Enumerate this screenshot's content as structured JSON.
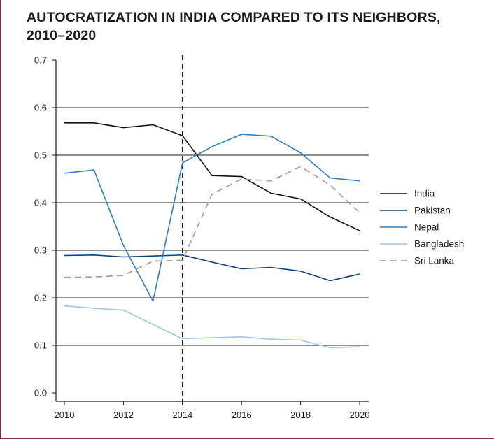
{
  "title_lines": [
    "AUTOCRATIZATION IN INDIA COMPARED TO ITS NEIGHBORS,",
    "2010–2020"
  ],
  "chart_data": {
    "type": "line",
    "title": "AUTOCRATIZATION IN INDIA COMPARED TO ITS NEIGHBORS, 2010–2020",
    "xlabel": "",
    "ylabel": "",
    "xlim": [
      2010,
      2020
    ],
    "ylim": [
      0.0,
      0.7
    ],
    "x_ticks": [
      2010,
      2012,
      2014,
      2016,
      2018,
      2020
    ],
    "y_ticks": [
      "0.0",
      "0.1",
      "0.2",
      "0.3",
      "0.4",
      "0.5",
      "0.6",
      "0.7"
    ],
    "grid": "horizontal",
    "reference_line": {
      "x": 2014,
      "style": "dashed"
    },
    "legend_position": "right",
    "x": [
      2010,
      2011,
      2012,
      2013,
      2014,
      2015,
      2016,
      2017,
      2018,
      2019,
      2020
    ],
    "series": [
      {
        "name": "India",
        "color": "#111111",
        "dash": false,
        "values": [
          0.568,
          0.568,
          0.558,
          0.564,
          0.541,
          0.457,
          0.455,
          0.42,
          0.408,
          0.37,
          0.341
        ]
      },
      {
        "name": "Pakistan",
        "color": "#0d3f7c",
        "dash": false,
        "values": [
          0.289,
          0.29,
          0.286,
          0.288,
          0.29,
          0.275,
          0.261,
          0.264,
          0.256,
          0.236,
          0.25
        ]
      },
      {
        "name": "Nepal",
        "color": "#2f7ec1",
        "dash": false,
        "values": [
          0.462,
          0.469,
          0.31,
          0.193,
          0.484,
          0.518,
          0.544,
          0.54,
          0.505,
          0.452,
          0.446
        ]
      },
      {
        "name": "Bangladesh",
        "color": "#9ec4e6",
        "dash": false,
        "values": [
          0.183,
          0.178,
          0.174,
          0.144,
          0.114,
          0.116,
          0.118,
          0.113,
          0.111,
          0.095,
          0.097
        ]
      },
      {
        "name": "Sri Lanka",
        "color": "#9a9a9a",
        "dash": true,
        "values": [
          0.243,
          0.244,
          0.247,
          0.277,
          0.279,
          0.418,
          0.45,
          0.446,
          0.476,
          0.437,
          0.379
        ]
      }
    ]
  }
}
